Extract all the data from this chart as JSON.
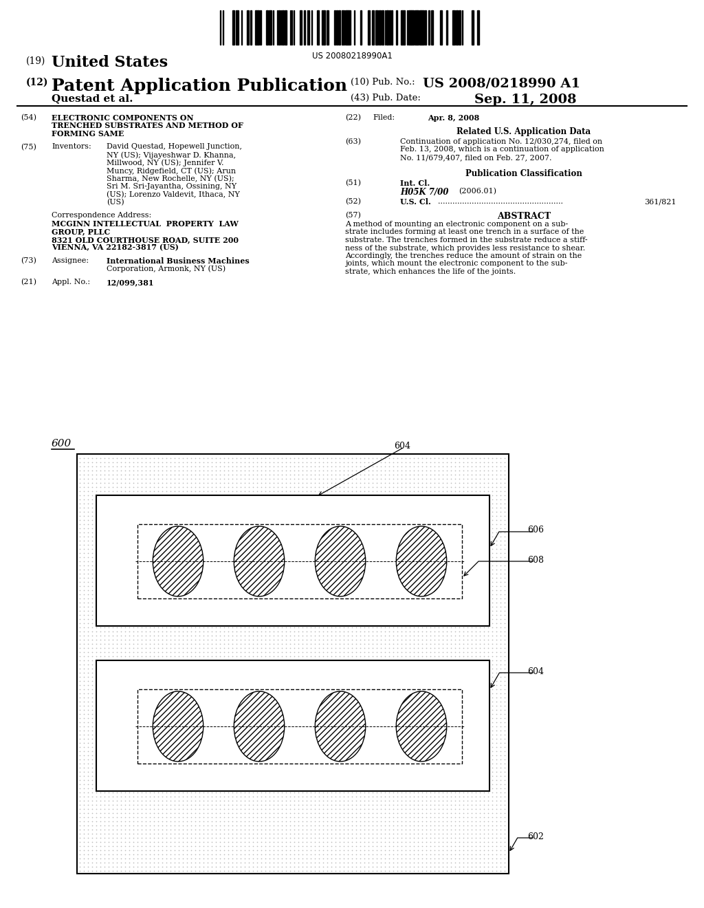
{
  "bg_color": "#ffffff",
  "barcode_text": "US 20080218990A1",
  "title_19": "(19)  United States",
  "title_12_prefix": "(12) ",
  "title_12": "Patent Application Publication",
  "pub_no_label": "(10) Pub. No.:",
  "pub_no": "US 2008/0218990 A1",
  "inventor_label": "Questad et al.",
  "pub_date_label": "(43) Pub. Date:",
  "pub_date": "Sep. 11, 2008",
  "section54_lines": [
    "ELECTRONIC COMPONENTS ON",
    "TRENCHED SUBSTRATES AND METHOD OF",
    "FORMING SAME"
  ],
  "section75_label": "Inventors:",
  "inventors_lines": [
    "David Questad, Hopewell Junction,",
    "NY (US); Vijayeshwar D. Khanna,",
    "Millwood, NY (US); Jennifer V.",
    "Muncy, Ridgefield, CT (US); Arun",
    "Sharma, New Rochelle, NY (US);",
    "Sri M. Sri-Jayantha, Ossining, NY",
    "(US); Lorenzo Valdevit, Ithaca, NY",
    "(US)"
  ],
  "corr_label": "Correspondence Address:",
  "corr_lines": [
    "MCGINN INTELLECTUAL  PROPERTY  LAW",
    "GROUP, PLLC",
    "8321 OLD COURTHOUSE ROAD, SUITE 200",
    "VIENNA, VA 22182-3817 (US)"
  ],
  "section73_label": "Assignee:",
  "section73_lines": [
    "International Business Machines",
    "Corporation, Armonk, NY (US)"
  ],
  "section21_label": "Appl. No.:",
  "section21_val": "12/099,381",
  "section22_label": "Filed:",
  "section22_val": "Apr. 8, 2008",
  "related_title": "Related U.S. Application Data",
  "section63_lines": [
    "Continuation of application No. 12/030,274, filed on",
    "Feb. 13, 2008, which is a continuation of application",
    "No. 11/679,407, filed on Feb. 27, 2007."
  ],
  "pub_class_title": "Publication Classification",
  "section51_label": "Int. Cl.",
  "section51_class": "H05K 7/00",
  "section51_year": "(2006.01)",
  "section52_label": "U.S. Cl.",
  "section52_val": "361/821",
  "section57_label": "ABSTRACT",
  "abstract_lines": [
    "A method of mounting an electronic component on a sub-",
    "strate includes forming at least one trench in a surface of the",
    "substrate. The trenches formed in the substrate reduce a stiff-",
    "ness of the substrate, which provides less resistance to shear.",
    "Accordingly, the trenches reduce the amount of strain on the",
    "joints, which mount the electronic component to the sub-",
    "strate, which enhances the life of the joints."
  ],
  "fig_label": "600",
  "label_604_top": "604",
  "label_606": "606",
  "label_608": "608",
  "label_604_mid": "604",
  "label_602": "602"
}
